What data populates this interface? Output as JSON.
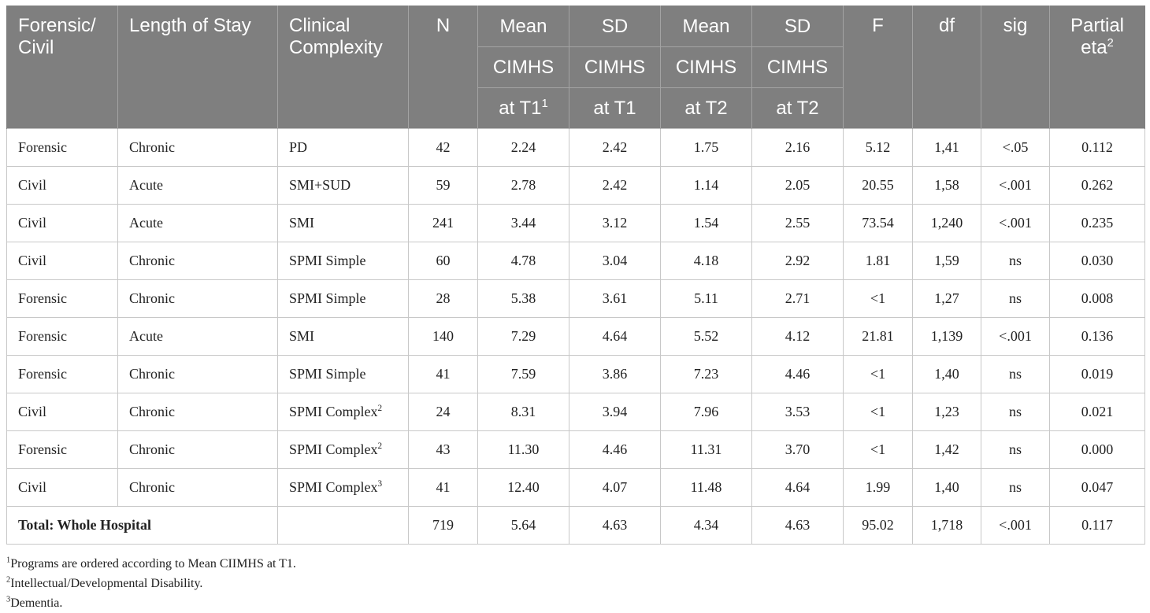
{
  "headers": {
    "forensic_civil": [
      "Forensic/",
      "Civil"
    ],
    "length_of_stay": "Length of Stay",
    "clinical_complexity": [
      "Clinical",
      "Complexity"
    ],
    "n": "N",
    "mean_t1": [
      "Mean",
      "CIMHS",
      "at T1"
    ],
    "mean_t1_sup": "1",
    "sd_t1": [
      "SD",
      "CIMHS",
      "at T1"
    ],
    "mean_t2": [
      "Mean",
      "CIMHS",
      "at T2"
    ],
    "sd_t2": [
      "SD",
      "CIMHS",
      "at T2"
    ],
    "f": "F",
    "df": "df",
    "sig": "sig",
    "partial_eta": [
      "Partial",
      "eta"
    ],
    "partial_eta_sup": "2"
  },
  "rows": [
    {
      "type": "Forensic",
      "stay": "Chronic",
      "complexity": "PD",
      "complexity_sup": "",
      "n": "42",
      "mean_t1": "2.24",
      "sd_t1": "2.42",
      "mean_t2": "1.75",
      "sd_t2": "2.16",
      "f": "5.12",
      "df": "1,41",
      "sig": "<.05",
      "eta": "0.112"
    },
    {
      "type": "Civil",
      "stay": "Acute",
      "complexity": "SMI+SUD",
      "complexity_sup": "",
      "n": "59",
      "mean_t1": "2.78",
      "sd_t1": "2.42",
      "mean_t2": "1.14",
      "sd_t2": "2.05",
      "f": "20.55",
      "df": "1,58",
      "sig": "<.001",
      "eta": "0.262"
    },
    {
      "type": "Civil",
      "stay": "Acute",
      "complexity": "SMI",
      "complexity_sup": "",
      "n": "241",
      "mean_t1": "3.44",
      "sd_t1": "3.12",
      "mean_t2": "1.54",
      "sd_t2": "2.55",
      "f": "73.54",
      "df": "1,240",
      "sig": "<.001",
      "eta": "0.235"
    },
    {
      "type": "Civil",
      "stay": "Chronic",
      "complexity": "SPMI Simple",
      "complexity_sup": "",
      "n": "60",
      "mean_t1": "4.78",
      "sd_t1": "3.04",
      "mean_t2": "4.18",
      "sd_t2": "2.92",
      "f": "1.81",
      "df": "1,59",
      "sig": "ns",
      "eta": "0.030"
    },
    {
      "type": "Forensic",
      "stay": "Chronic",
      "complexity": "SPMI Simple",
      "complexity_sup": "",
      "n": "28",
      "mean_t1": "5.38",
      "sd_t1": "3.61",
      "mean_t2": "5.11",
      "sd_t2": "2.71",
      "f": "<1",
      "df": "1,27",
      "sig": "ns",
      "eta": "0.008"
    },
    {
      "type": "Forensic",
      "stay": "Acute",
      "complexity": "SMI",
      "complexity_sup": "",
      "n": "140",
      "mean_t1": "7.29",
      "sd_t1": "4.64",
      "mean_t2": "5.52",
      "sd_t2": "4.12",
      "f": "21.81",
      "df": "1,139",
      "sig": "<.001",
      "eta": "0.136"
    },
    {
      "type": "Forensic",
      "stay": "Chronic",
      "complexity": "SPMI Simple",
      "complexity_sup": "",
      "n": "41",
      "mean_t1": "7.59",
      "sd_t1": "3.86",
      "mean_t2": "7.23",
      "sd_t2": "4.46",
      "f": "<1",
      "df": "1,40",
      "sig": "ns",
      "eta": "0.019"
    },
    {
      "type": "Civil",
      "stay": "Chronic",
      "complexity": "SPMI Complex",
      "complexity_sup": "2",
      "n": "24",
      "mean_t1": "8.31",
      "sd_t1": "3.94",
      "mean_t2": "7.96",
      "sd_t2": "3.53",
      "f": "<1",
      "df": "1,23",
      "sig": "ns",
      "eta": "0.021"
    },
    {
      "type": "Forensic",
      "stay": "Chronic",
      "complexity": "SPMI Complex",
      "complexity_sup": "2",
      "n": "43",
      "mean_t1": "11.30",
      "sd_t1": "4.46",
      "mean_t2": "11.31",
      "sd_t2": "3.70",
      "f": "<1",
      "df": "1,42",
      "sig": "ns",
      "eta": "0.000"
    },
    {
      "type": "Civil",
      "stay": "Chronic",
      "complexity": "SPMI Complex",
      "complexity_sup": "3",
      "n": "41",
      "mean_t1": "12.40",
      "sd_t1": "4.07",
      "mean_t2": "11.48",
      "sd_t2": "4.64",
      "f": "1.99",
      "df": "1,40",
      "sig": "ns",
      "eta": "0.047"
    }
  ],
  "total": {
    "label": "Total: Whole Hospital",
    "complexity": "",
    "n": "719",
    "mean_t1": "5.64",
    "sd_t1": "4.63",
    "mean_t2": "4.34",
    "sd_t2": "4.63",
    "f": "95.02",
    "df": "1,718",
    "sig": "<.001",
    "eta": "0.117"
  },
  "footnotes": [
    {
      "sup": "1",
      "text": "Programs are ordered according to Mean CIIMHS at T1."
    },
    {
      "sup": "2",
      "text": "Intellectual/Developmental Disability."
    },
    {
      "sup": "3",
      "text": "Dementia."
    }
  ]
}
